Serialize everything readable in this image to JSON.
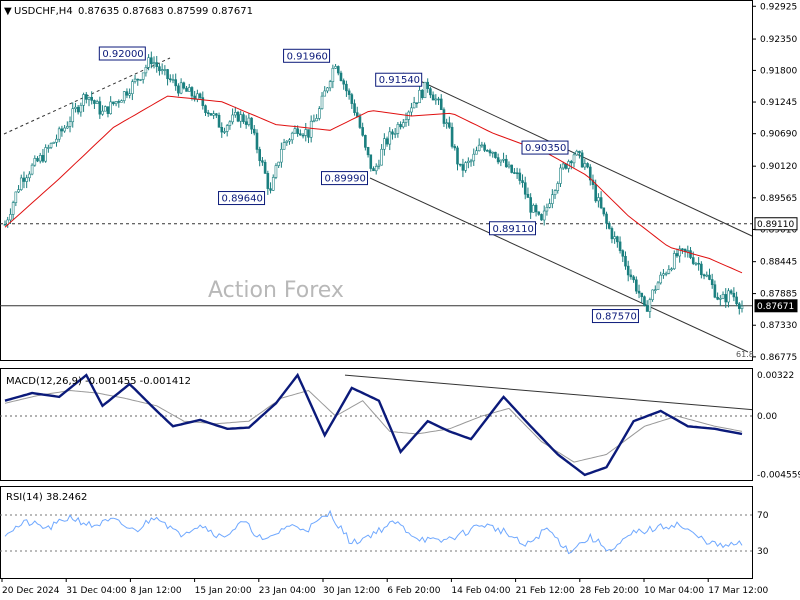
{
  "header": {
    "symbol": "USDCHF,H4",
    "ohlc": "0.87635 0.87683 0.87599 0.87671"
  },
  "watermark": "Action Forex",
  "colors": {
    "candle": "#1a7f7f",
    "ma": "#e01010",
    "macd": "#0b1a7a",
    "signal": "#999999",
    "rsi": "#6fa8ff",
    "trend": "#333333",
    "label_border": "#0b1a7a",
    "label_text": "#0b1a7a"
  },
  "chart_data": [
    {
      "type": "candlestick",
      "panel": "price",
      "yaxis_ticks": [
        "0.92925",
        "0.92350",
        "0.91800",
        "0.91245",
        "0.90690",
        "0.90120",
        "0.89565",
        "0.89010",
        "0.88445",
        "0.87885",
        "0.87330",
        "0.86775"
      ],
      "ylim": [
        0.8672,
        0.93
      ],
      "xaxis_ticks": [
        "20 Dec 2024",
        "31 Dec 04:00",
        "8 Jan 12:00",
        "15 Jan 20:00",
        "23 Jan 04:00",
        "30 Jan 12:00",
        "6 Feb 20:00",
        "14 Feb 04:00",
        "21 Feb 12:00",
        "28 Feb 20:00",
        "10 Mar 04:00",
        "17 Mar 12:00"
      ],
      "path_points": [
        [
          0,
          0.891
        ],
        [
          6,
          0.899
        ],
        [
          14,
          0.903
        ],
        [
          22,
          0.908
        ],
        [
          30,
          0.914
        ],
        [
          36,
          0.9105
        ],
        [
          42,
          0.913
        ],
        [
          48,
          0.916
        ],
        [
          54,
          0.92
        ],
        [
          58,
          0.9175
        ],
        [
          64,
          0.915
        ],
        [
          70,
          0.9135
        ],
        [
          76,
          0.9105
        ],
        [
          80,
          0.908
        ],
        [
          86,
          0.91
        ],
        [
          90,
          0.909
        ],
        [
          94,
          0.903
        ],
        [
          98,
          0.8964
        ],
        [
          102,
          0.9045
        ],
        [
          108,
          0.908
        ],
        [
          112,
          0.907
        ],
        [
          116,
          0.911
        ],
        [
          120,
          0.917
        ],
        [
          122,
          0.9196
        ],
        [
          126,
          0.9145
        ],
        [
          130,
          0.91
        ],
        [
          133,
          0.904
        ],
        [
          136,
          0.8999
        ],
        [
          140,
          0.905
        ],
        [
          146,
          0.909
        ],
        [
          150,
          0.912
        ],
        [
          156,
          0.9154
        ],
        [
          160,
          0.912
        ],
        [
          164,
          0.907
        ],
        [
          168,
          0.9005
        ],
        [
          172,
          0.902
        ],
        [
          176,
          0.905
        ],
        [
          180,
          0.904
        ],
        [
          186,
          0.9005
        ],
        [
          190,
          0.899
        ],
        [
          194,
          0.894
        ],
        [
          198,
          0.8911
        ],
        [
          202,
          0.897
        ],
        [
          206,
          0.901
        ],
        [
          210,
          0.9035
        ],
        [
          214,
          0.9015
        ],
        [
          218,
          0.896
        ],
        [
          222,
          0.891
        ],
        [
          226,
          0.8875
        ],
        [
          230,
          0.883
        ],
        [
          234,
          0.879
        ],
        [
          236,
          0.8757
        ],
        [
          240,
          0.88
        ],
        [
          244,
          0.883
        ],
        [
          248,
          0.8855
        ],
        [
          252,
          0.886
        ],
        [
          256,
          0.884
        ],
        [
          260,
          0.881
        ],
        [
          264,
          0.8775
        ],
        [
          268,
          0.879
        ],
        [
          272,
          0.8767
        ]
      ],
      "ma_points": [
        [
          0,
          0.8905
        ],
        [
          20,
          0.899
        ],
        [
          40,
          0.908
        ],
        [
          60,
          0.9135
        ],
        [
          80,
          0.9125
        ],
        [
          100,
          0.9085
        ],
        [
          120,
          0.9075
        ],
        [
          135,
          0.911
        ],
        [
          150,
          0.91
        ],
        [
          165,
          0.9105
        ],
        [
          180,
          0.907
        ],
        [
          200,
          0.9035
        ],
        [
          215,
          0.8995
        ],
        [
          230,
          0.8925
        ],
        [
          245,
          0.887
        ],
        [
          260,
          0.885
        ],
        [
          272,
          0.8825
        ]
      ],
      "bar_count": 273,
      "horizontal_lines": [
        {
          "value": 0.8911,
          "label": "0.89110",
          "style": "dashed"
        },
        {
          "value": 0.87671,
          "label": "0.87671",
          "style": "solid"
        }
      ],
      "extra_label": "61.8",
      "annotations": [
        "0.92000",
        "0.91960",
        "0.91540",
        "0.90350",
        "0.89640",
        "0.89990",
        "0.89110",
        "0.87570"
      ]
    },
    {
      "type": "line",
      "panel": "macd",
      "title": "MACD(12,26,9) -0.001455 -0.001412",
      "yaxis_ticks": [
        "0.00322",
        "0.00",
        "-0.004559"
      ],
      "ylim": [
        -0.005,
        0.0036
      ],
      "series": [
        {
          "name": "MACD",
          "points": [
            [
              0,
              0.0012
            ],
            [
              10,
              0.0018
            ],
            [
              20,
              0.0015
            ],
            [
              30,
              0.0032
            ],
            [
              36,
              0.0008
            ],
            [
              46,
              0.0025
            ],
            [
              56,
              0.0004
            ],
            [
              62,
              -0.0008
            ],
            [
              72,
              -0.0003
            ],
            [
              82,
              -0.001
            ],
            [
              90,
              -0.0009
            ],
            [
              100,
              0.001
            ],
            [
              108,
              0.0032
            ],
            [
              118,
              -0.0015
            ],
            [
              128,
              0.0022
            ],
            [
              138,
              0.0012
            ],
            [
              146,
              -0.0028
            ],
            [
              156,
              -0.0004
            ],
            [
              164,
              -0.0012
            ],
            [
              172,
              -0.0018
            ],
            [
              184,
              0.0015
            ],
            [
              194,
              -0.0008
            ],
            [
              204,
              -0.003
            ],
            [
              214,
              -0.0046
            ],
            [
              222,
              -0.004
            ],
            [
              232,
              -0.0004
            ],
            [
              242,
              0.0004
            ],
            [
              252,
              -0.0008
            ],
            [
              262,
              -0.001
            ],
            [
              272,
              -0.0014
            ]
          ]
        },
        {
          "name": "Signal",
          "points": [
            [
              0,
              0.001
            ],
            [
              12,
              0.0016
            ],
            [
              24,
              0.002
            ],
            [
              34,
              0.0018
            ],
            [
              44,
              0.0014
            ],
            [
              56,
              0.0008
            ],
            [
              66,
              -0.0004
            ],
            [
              78,
              -0.0006
            ],
            [
              90,
              -0.0004
            ],
            [
              102,
              0.0014
            ],
            [
              112,
              0.002
            ],
            [
              122,
              0.0
            ],
            [
              132,
              0.0012
            ],
            [
              142,
              -0.0012
            ],
            [
              152,
              -0.0014
            ],
            [
              164,
              -0.001
            ],
            [
              176,
              0.0
            ],
            [
              186,
              0.0006
            ],
            [
              198,
              -0.002
            ],
            [
              210,
              -0.0036
            ],
            [
              222,
              -0.003
            ],
            [
              236,
              -0.0008
            ],
            [
              248,
              0.0
            ],
            [
              262,
              -0.0008
            ],
            [
              272,
              -0.0012
            ]
          ]
        }
      ]
    },
    {
      "type": "line",
      "panel": "rsi",
      "title": "RSI(14) 38.2462",
      "yaxis_ticks": [
        "70",
        "30"
      ],
      "ylim": [
        0,
        100
      ],
      "series": [
        {
          "name": "RSI",
          "points": [
            [
              0,
              50
            ],
            [
              8,
              62
            ],
            [
              16,
              55
            ],
            [
              24,
              68
            ],
            [
              32,
              58
            ],
            [
              40,
              64
            ],
            [
              48,
              52
            ],
            [
              56,
              70
            ],
            [
              64,
              48
            ],
            [
              72,
              60
            ],
            [
              80,
              45
            ],
            [
              88,
              62
            ],
            [
              96,
              40
            ],
            [
              104,
              58
            ],
            [
              112,
              55
            ],
            [
              120,
              72
            ],
            [
              128,
              38
            ],
            [
              136,
              50
            ],
            [
              144,
              62
            ],
            [
              152,
              45
            ],
            [
              160,
              40
            ],
            [
              168,
              48
            ],
            [
              176,
              60
            ],
            [
              184,
              52
            ],
            [
              192,
              35
            ],
            [
              200,
              55
            ],
            [
              208,
              30
            ],
            [
              216,
              45
            ],
            [
              224,
              30
            ],
            [
              232,
              50
            ],
            [
              240,
              55
            ],
            [
              248,
              60
            ],
            [
              256,
              45
            ],
            [
              264,
              35
            ],
            [
              272,
              38
            ]
          ]
        }
      ]
    }
  ]
}
